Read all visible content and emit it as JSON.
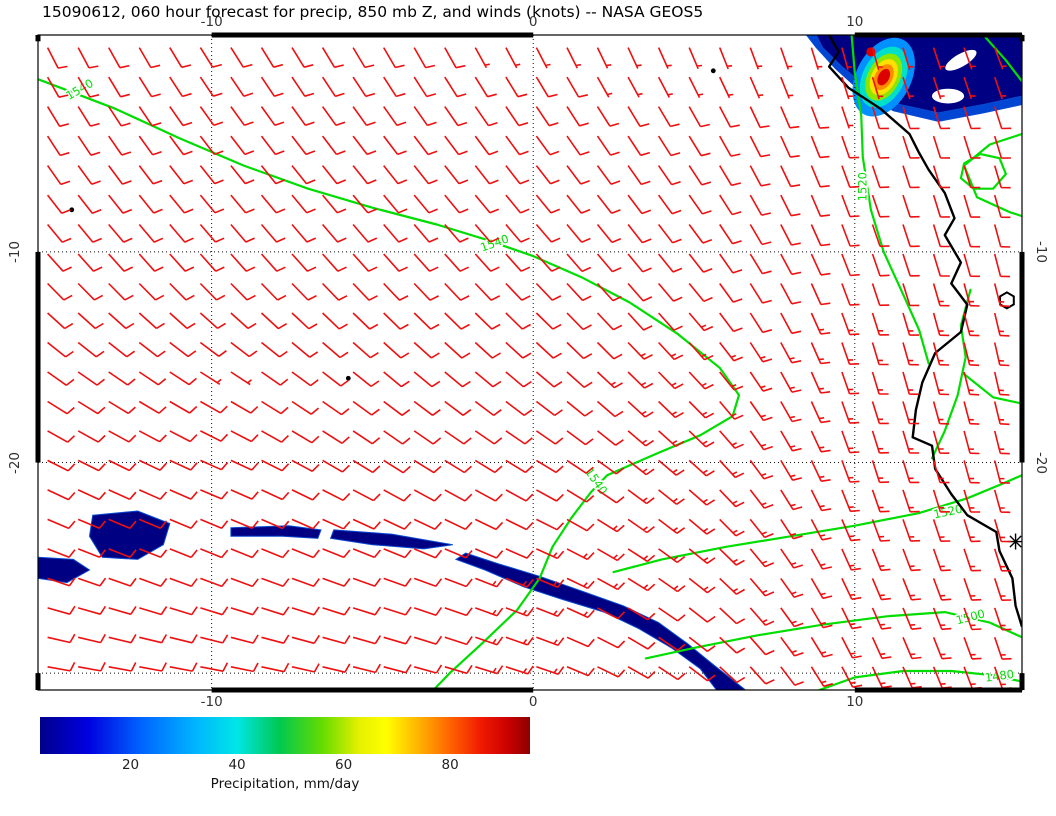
{
  "title": "15090612, 060 hour forecast for precip, 850 mb Z, and winds (knots) -- NASA GEOS5",
  "chart_data": {
    "type": "map",
    "subtype": "weather-forecast-map",
    "model": "NASA GEOS5",
    "init_time": "15090612",
    "forecast_hour": "060",
    "fields": [
      "precipitation shaded (mm/day)",
      "850 mb geopotential height (green contours, m)",
      "winds (red barbs, knots)"
    ],
    "x_axis": {
      "unit": "degrees longitude",
      "range": [
        -15.4,
        15.2
      ],
      "ticks": [
        -10,
        0,
        10
      ],
      "gridlines": [
        -10,
        0,
        10
      ]
    },
    "y_axis": {
      "unit": "degrees latitude",
      "range": [
        -30.8,
        0.3
      ],
      "ticks": [
        -10,
        -20
      ],
      "gridlines": [
        -10,
        -20,
        -30
      ]
    },
    "colors": {
      "wind_barb": "#ee1010",
      "contour": "#00dd00",
      "coast": "#000000",
      "precip_low": "#000082"
    },
    "contours": [
      {
        "level": 1540,
        "points": [
          [
            -15.4,
            -1.8
          ],
          [
            -13,
            -3.2
          ],
          [
            -11,
            -4.6
          ],
          [
            -9,
            -5.9
          ],
          [
            -7,
            -7
          ],
          [
            -5,
            -7.9
          ],
          [
            -3,
            -8.7
          ],
          [
            -1.5,
            -9.4
          ],
          [
            0,
            -10.2
          ],
          [
            1.5,
            -11.2
          ],
          [
            3,
            -12.4
          ],
          [
            4.5,
            -13.9
          ],
          [
            5.8,
            -15.5
          ],
          [
            6.4,
            -16.8
          ],
          [
            6.2,
            -17.8
          ],
          [
            5.2,
            -18.7
          ],
          [
            3.8,
            -19.6
          ],
          [
            2.3,
            -20.6
          ],
          [
            1.8,
            -21.4
          ],
          [
            1.2,
            -22.6
          ],
          [
            0.6,
            -24
          ],
          [
            0.2,
            -25.5
          ],
          [
            -0.5,
            -27
          ],
          [
            -1.6,
            -28.6
          ],
          [
            -2.6,
            -30
          ],
          [
            -3.1,
            -30.8
          ]
        ],
        "labels": [
          {
            "lon": -14.1,
            "lat": -2.3,
            "angle": -30
          },
          {
            "lon": -1.2,
            "lat": -9.6,
            "angle": -20
          },
          {
            "lon": 1.95,
            "lat": -20.9,
            "angle": 55
          }
        ]
      },
      {
        "level": 1520,
        "points": [
          [
            9.9,
            0.3
          ],
          [
            10,
            -1.5
          ],
          [
            10.2,
            -3.5
          ],
          [
            10.25,
            -5.5
          ],
          [
            10.5,
            -8
          ],
          [
            10.9,
            -10
          ],
          [
            11.5,
            -12
          ],
          [
            12,
            -13.7
          ],
          [
            12.3,
            -15.3
          ]
        ],
        "labels": [
          {
            "lon": 10.25,
            "lat": -6.9,
            "angle": -90
          }
        ]
      },
      {
        "level": 1520,
        "points": [
          [
            2.5,
            -25.2
          ],
          [
            4,
            -24.6
          ],
          [
            6,
            -24
          ],
          [
            8,
            -23.5
          ],
          [
            10,
            -23
          ],
          [
            12,
            -22.4
          ],
          [
            13.5,
            -21.7
          ],
          [
            14.6,
            -21
          ],
          [
            15.2,
            -20.6
          ]
        ],
        "labels": [
          {
            "lon": 12.9,
            "lat": -22.35,
            "angle": -12
          }
        ]
      },
      {
        "level": 1500,
        "points": [
          [
            3.5,
            -29.3
          ],
          [
            5,
            -28.8
          ],
          [
            7,
            -28.2
          ],
          [
            9,
            -27.7
          ],
          [
            11,
            -27.3
          ],
          [
            12.8,
            -27.1
          ],
          [
            14.2,
            -27.6
          ],
          [
            15.2,
            -28.3
          ]
        ],
        "labels": [
          {
            "lon": 13.6,
            "lat": -27.35,
            "angle": -15
          }
        ]
      },
      {
        "level": 1480,
        "points": [
          [
            8.9,
            -30.8
          ],
          [
            10,
            -30.2
          ],
          [
            11.5,
            -29.9
          ],
          [
            13,
            -29.9
          ],
          [
            14.3,
            -30.1
          ],
          [
            15.2,
            -30.4
          ]
        ],
        "labels": [
          {
            "lon": 14.5,
            "lat": -30.15,
            "angle": -8
          }
        ]
      },
      {
        "level": 1520,
        "points": [
          [
            15.2,
            -4.4
          ],
          [
            14.2,
            -4.9
          ],
          [
            13.4,
            -5.9
          ],
          [
            13.8,
            -7.4
          ],
          [
            14.8,
            -8.1
          ],
          [
            15.2,
            -8.3
          ]
        ],
        "labels": []
      },
      {
        "level": 1520,
        "points": [
          [
            13.6,
            -11.8
          ],
          [
            13.3,
            -13.5
          ],
          [
            13.45,
            -15
          ],
          [
            13.2,
            -16.8
          ],
          [
            12.8,
            -18.5
          ],
          [
            12.4,
            -19.8
          ]
        ],
        "labels": []
      },
      {
        "level": 1520,
        "points": [
          [
            13.4,
            -15.8
          ],
          [
            14.3,
            -16.9
          ],
          [
            15.2,
            -17.2
          ]
        ],
        "labels": []
      },
      {
        "level": 1520,
        "points": [
          [
            14,
            0.3
          ],
          [
            14.7,
            -0.9
          ],
          [
            15.2,
            -1.9
          ]
        ],
        "labels": []
      },
      {
        "level": 1520,
        "points": [
          [
            13.4,
            -5.8
          ],
          [
            13.9,
            -5.35
          ],
          [
            14.5,
            -5.55
          ],
          [
            14.7,
            -6.3
          ],
          [
            14.3,
            -7
          ],
          [
            13.7,
            -7
          ],
          [
            13.3,
            -6.5
          ],
          [
            13.4,
            -5.8
          ]
        ],
        "labels": []
      }
    ],
    "coastline": [
      [
        9.2,
        0.3
      ],
      [
        9.5,
        -0.5
      ],
      [
        9.2,
        -1.2
      ],
      [
        9.8,
        -2.2
      ],
      [
        10.8,
        -3.2
      ],
      [
        11.7,
        -4.4
      ],
      [
        12,
        -5.3
      ],
      [
        12.3,
        -6.1
      ],
      [
        12.8,
        -7.2
      ],
      [
        13.1,
        -8.4
      ],
      [
        12.8,
        -9.2
      ],
      [
        13.3,
        -10.5
      ],
      [
        13,
        -11.5
      ],
      [
        13.5,
        -12.5
      ],
      [
        13.3,
        -13.8
      ],
      [
        12.5,
        -14.8
      ],
      [
        12.1,
        -16.2
      ],
      [
        11.9,
        -17.5
      ],
      [
        11.8,
        -18.8
      ],
      [
        12.4,
        -19.2
      ],
      [
        12.5,
        -20.3
      ],
      [
        13,
        -21.5
      ],
      [
        13.5,
        -22.5
      ],
      [
        14.4,
        -23.3
      ],
      [
        14.5,
        -24.2
      ],
      [
        14.9,
        -25.5
      ],
      [
        15,
        -26.8
      ],
      [
        15.2,
        -27.8
      ]
    ],
    "islands": [
      {
        "name": "island-dot-1",
        "lon": -14.35,
        "lat": -8
      },
      {
        "name": "island-dot-2",
        "lon": -5.75,
        "lat": -16
      },
      {
        "name": "island-dot-3",
        "lon": 5.6,
        "lat": -1.4
      }
    ],
    "markers": [
      {
        "type": "asterisk",
        "lon": 15.0,
        "lat": -23.75
      },
      {
        "type": "hexagon",
        "lon": 14.73,
        "lat": -12.3
      }
    ],
    "precip_regions": [
      {
        "name": "congo-coast-fringe",
        "fill": "#0046d2",
        "points": [
          [
            8.5,
            0.3
          ],
          [
            15.2,
            0.3
          ],
          [
            15.2,
            -3
          ],
          [
            14,
            -3.4
          ],
          [
            12.6,
            -3.8
          ],
          [
            11.2,
            -3.3
          ],
          [
            10.2,
            -2.4
          ],
          [
            9.4,
            -1.3
          ],
          [
            8.8,
            -0.3
          ]
        ]
      },
      {
        "name": "congo-coast-heavy",
        "fill": "#000082",
        "points": [
          [
            8.8,
            0.3
          ],
          [
            15.2,
            0.3
          ],
          [
            15.2,
            -2.6
          ],
          [
            14,
            -3
          ],
          [
            12.6,
            -3.4
          ],
          [
            11.4,
            -3
          ],
          [
            10.4,
            -2.2
          ],
          [
            9.6,
            -1.2
          ],
          [
            9,
            -0.3
          ]
        ]
      },
      {
        "name": "sw-blob-1",
        "fill": "#000082",
        "points": [
          [
            -13.7,
            -22.5
          ],
          [
            -12.3,
            -22.3
          ],
          [
            -11.3,
            -22.9
          ],
          [
            -11.5,
            -23.9
          ],
          [
            -12.3,
            -24.6
          ],
          [
            -13.4,
            -24.5
          ],
          [
            -13.8,
            -23.5
          ]
        ]
      },
      {
        "name": "sw-blob-2",
        "fill": "#000082",
        "points": [
          [
            -15.4,
            -24.5
          ],
          [
            -14.3,
            -24.6
          ],
          [
            -13.8,
            -25.1
          ],
          [
            -14.5,
            -25.7
          ],
          [
            -15.4,
            -25.5
          ]
        ]
      },
      {
        "name": "streak-1",
        "fill": "#000082",
        "points": [
          [
            -9.4,
            -23.1
          ],
          [
            -7.6,
            -23
          ],
          [
            -6.6,
            -23.2
          ],
          [
            -6.7,
            -23.6
          ],
          [
            -7.8,
            -23.5
          ],
          [
            -9.4,
            -23.5
          ]
        ]
      },
      {
        "name": "streak-2",
        "fill": "#000082",
        "points": [
          [
            -6.2,
            -23.2
          ],
          [
            -4.4,
            -23.4
          ],
          [
            -2.5,
            -23.9
          ],
          [
            -3.4,
            -24.1
          ],
          [
            -5,
            -23.9
          ],
          [
            -6.3,
            -23.6
          ]
        ]
      },
      {
        "name": "south-band",
        "fill": "#000082",
        "points": [
          [
            -2.4,
            -24.6
          ],
          [
            -1.5,
            -25.1
          ],
          [
            -0.3,
            -25.9
          ],
          [
            0.9,
            -26.5
          ],
          [
            2.2,
            -27.1
          ],
          [
            3.3,
            -27.9
          ],
          [
            4.3,
            -28.8
          ],
          [
            5.2,
            -29.8
          ],
          [
            5.7,
            -30.8
          ],
          [
            6.6,
            -30.8
          ],
          [
            5.6,
            -29.6
          ],
          [
            4.8,
            -28.6
          ],
          [
            3.9,
            -27.6
          ],
          [
            2.8,
            -26.8
          ],
          [
            1.5,
            -26.1
          ],
          [
            0.2,
            -25.4
          ],
          [
            -1.1,
            -24.8
          ],
          [
            -2.1,
            -24.3
          ]
        ]
      }
    ],
    "heavy_cells": [
      {
        "lon": 13.3,
        "lat": -0.9,
        "rx": 0.55,
        "ry": 0.3,
        "rot": -30,
        "color": "#ffffff"
      },
      {
        "lon": 12.9,
        "lat": -2.6,
        "rx": 0.5,
        "ry": 0.35,
        "rot": 0,
        "color": "#ffffff"
      },
      {
        "lon": 10.9,
        "lat": -1.7,
        "rx": 0.85,
        "ry": 2.0,
        "rot": 28,
        "color": "#0090ff"
      },
      {
        "lon": 10.9,
        "lat": -1.7,
        "rx": 0.65,
        "ry": 1.55,
        "rot": 28,
        "color": "#00e0c8"
      },
      {
        "lon": 10.9,
        "lat": -1.7,
        "rx": 0.5,
        "ry": 1.2,
        "rot": 28,
        "color": "#8ce600"
      },
      {
        "lon": 10.9,
        "lat": -1.7,
        "rx": 0.38,
        "ry": 0.92,
        "rot": 28,
        "color": "#ffe000"
      },
      {
        "lon": 10.9,
        "lat": -1.7,
        "rx": 0.27,
        "ry": 0.66,
        "rot": 28,
        "color": "#ff8c00"
      },
      {
        "lon": 10.9,
        "lat": -1.7,
        "rx": 0.17,
        "ry": 0.42,
        "rot": 28,
        "color": "#dd0000"
      },
      {
        "lon": 10.5,
        "lat": -0.5,
        "rx": 0.14,
        "ry": 0.22,
        "rot": 0,
        "color": "#dd0000"
      }
    ],
    "wind_field": {
      "units": "knots",
      "grid_lons": [
        -15,
        -10,
        -5,
        0,
        5,
        10,
        15
      ],
      "grid_lats": [
        0,
        -5,
        -10,
        -15,
        -20,
        -25,
        -30
      ],
      "u": [
        [
          -4,
          -5,
          -4,
          -3,
          -2,
          -1,
          -2
        ],
        [
          -6,
          -7,
          -7,
          -6,
          -5,
          -3,
          -3
        ],
        [
          -8,
          -8,
          -8,
          -8,
          -7,
          -4,
          -3
        ],
        [
          -8,
          -6,
          -7,
          -9,
          -9,
          -4,
          -3
        ],
        [
          -10,
          -7,
          -8,
          -10,
          -10,
          -5,
          -4
        ],
        [
          -11,
          -10,
          -11,
          -12,
          -10,
          -6,
          -5
        ],
        [
          -12,
          -11,
          -12,
          -12,
          -9,
          -6,
          -5
        ]
      ],
      "v": [
        [
          8,
          8,
          7,
          6,
          5,
          4,
          5
        ],
        [
          9,
          9,
          9,
          8,
          8,
          9,
          10
        ],
        [
          9,
          9,
          9,
          9,
          9,
          11,
          12
        ],
        [
          6,
          4,
          6,
          8,
          10,
          13,
          14
        ],
        [
          5,
          3,
          5,
          6,
          9,
          15,
          16
        ],
        [
          4,
          4,
          4,
          5,
          8,
          14,
          16
        ],
        [
          2,
          2,
          3,
          4,
          7,
          12,
          15
        ]
      ]
    },
    "colorbar": {
      "label": "Precipitation, mm/day",
      "ticks": [
        20,
        40,
        60,
        80
      ],
      "range": [
        3,
        95
      ],
      "stops": [
        [
          3,
          "#00008b"
        ],
        [
          12,
          "#0000e0"
        ],
        [
          22,
          "#0064ff"
        ],
        [
          32,
          "#00b4ff"
        ],
        [
          40,
          "#00e6e6"
        ],
        [
          48,
          "#00c850"
        ],
        [
          56,
          "#64dc00"
        ],
        [
          63,
          "#e6f000"
        ],
        [
          68,
          "#ffff00"
        ],
        [
          74,
          "#ffb400"
        ],
        [
          80,
          "#ff6400"
        ],
        [
          86,
          "#f01800"
        ],
        [
          91,
          "#c80000"
        ],
        [
          95,
          "#8c0000"
        ]
      ]
    }
  }
}
